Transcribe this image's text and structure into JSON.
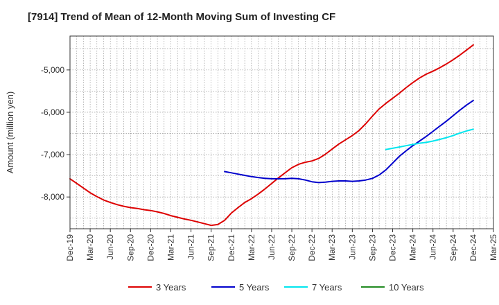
{
  "chart_data": {
    "type": "line",
    "title": "[7914]  Trend of Mean of 12-Month Moving Sum of Investing CF",
    "ylabel": "Amount (million yen)",
    "xlabel": "",
    "ylim": [
      -8750,
      -4200
    ],
    "yticks": [
      -5000,
      -6000,
      -7000,
      -8000
    ],
    "ytick_labels": [
      "-5,000",
      "-6,000",
      "-7,000",
      "-8,000"
    ],
    "x_start": "2019-12",
    "x_end": "2025-03",
    "xtick_labels": [
      "Dec-19",
      "Mar-20",
      "Jun-20",
      "Sep-20",
      "Dec-20",
      "Mar-21",
      "Jun-21",
      "Sep-21",
      "Dec-21",
      "Mar-22",
      "Jun-22",
      "Sep-22",
      "Dec-22",
      "Mar-23",
      "Jun-23",
      "Sep-23",
      "Dec-23",
      "Mar-24",
      "Jun-24",
      "Sep-24",
      "Dec-24",
      "Mar-25"
    ],
    "grid": true,
    "legend_position": "bottom",
    "series": [
      {
        "name": "3 Years",
        "color": "#dd0000",
        "x": [
          "2019-12",
          "2020-01",
          "2020-02",
          "2020-03",
          "2020-04",
          "2020-05",
          "2020-06",
          "2020-07",
          "2020-08",
          "2020-09",
          "2020-10",
          "2020-11",
          "2020-12",
          "2021-01",
          "2021-02",
          "2021-03",
          "2021-04",
          "2021-05",
          "2021-06",
          "2021-07",
          "2021-08",
          "2021-09",
          "2021-10",
          "2021-11",
          "2021-12",
          "2022-01",
          "2022-02",
          "2022-03",
          "2022-04",
          "2022-05",
          "2022-06",
          "2022-07",
          "2022-08",
          "2022-09",
          "2022-10",
          "2022-11",
          "2022-12",
          "2023-01",
          "2023-02",
          "2023-03",
          "2023-04",
          "2023-05",
          "2023-06",
          "2023-07",
          "2023-08",
          "2023-09",
          "2023-10",
          "2023-11",
          "2023-12",
          "2024-01",
          "2024-02",
          "2024-03",
          "2024-04",
          "2024-05",
          "2024-06",
          "2024-07",
          "2024-08",
          "2024-09",
          "2024-10",
          "2024-11",
          "2024-12"
        ],
        "values": [
          -7570,
          -7680,
          -7790,
          -7900,
          -7990,
          -8070,
          -8130,
          -8180,
          -8220,
          -8250,
          -8270,
          -8300,
          -8320,
          -8350,
          -8390,
          -8440,
          -8480,
          -8520,
          -8550,
          -8590,
          -8630,
          -8670,
          -8650,
          -8550,
          -8380,
          -8250,
          -8130,
          -8040,
          -7930,
          -7810,
          -7680,
          -7550,
          -7430,
          -7310,
          -7230,
          -7180,
          -7150,
          -7090,
          -6990,
          -6870,
          -6750,
          -6650,
          -6550,
          -6430,
          -6270,
          -6090,
          -5920,
          -5790,
          -5670,
          -5550,
          -5420,
          -5300,
          -5190,
          -5100,
          -5030,
          -4950,
          -4860,
          -4760,
          -4650,
          -4530,
          -4410
        ]
      },
      {
        "name": "5 Years",
        "color": "#0000cc",
        "x": [
          "2021-11",
          "2021-12",
          "2022-01",
          "2022-02",
          "2022-03",
          "2022-04",
          "2022-05",
          "2022-06",
          "2022-07",
          "2022-08",
          "2022-09",
          "2022-10",
          "2022-11",
          "2022-12",
          "2023-01",
          "2023-02",
          "2023-03",
          "2023-04",
          "2023-05",
          "2023-06",
          "2023-07",
          "2023-08",
          "2023-09",
          "2023-10",
          "2023-11",
          "2023-12",
          "2024-01",
          "2024-02",
          "2024-03",
          "2024-04",
          "2024-05",
          "2024-06",
          "2024-07",
          "2024-08",
          "2024-09",
          "2024-10",
          "2024-11",
          "2024-12"
        ],
        "values": [
          -7400,
          -7430,
          -7460,
          -7490,
          -7520,
          -7540,
          -7560,
          -7570,
          -7570,
          -7570,
          -7560,
          -7570,
          -7600,
          -7640,
          -7660,
          -7650,
          -7630,
          -7620,
          -7620,
          -7630,
          -7620,
          -7600,
          -7560,
          -7480,
          -7360,
          -7200,
          -7040,
          -6910,
          -6790,
          -6680,
          -6570,
          -6450,
          -6330,
          -6210,
          -6080,
          -5950,
          -5830,
          -5720
        ]
      },
      {
        "name": "7 Years",
        "color": "#00e5ee",
        "x": [
          "2023-11",
          "2023-12",
          "2024-01",
          "2024-02",
          "2024-03",
          "2024-04",
          "2024-05",
          "2024-06",
          "2024-07",
          "2024-08",
          "2024-09",
          "2024-10",
          "2024-11",
          "2024-12"
        ],
        "values": [
          -6880,
          -6850,
          -6820,
          -6790,
          -6760,
          -6730,
          -6710,
          -6680,
          -6640,
          -6600,
          -6550,
          -6490,
          -6440,
          -6400
        ]
      },
      {
        "name": "10 Years",
        "color": "#228b22",
        "x": [],
        "values": []
      }
    ]
  }
}
